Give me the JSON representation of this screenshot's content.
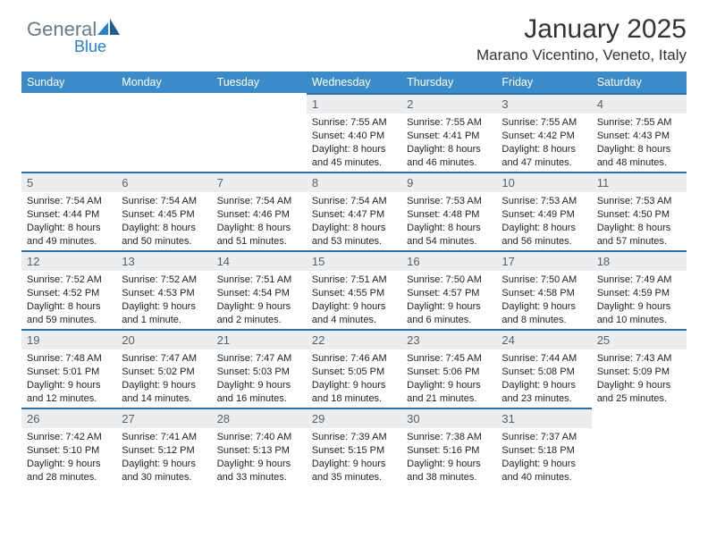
{
  "brand": {
    "part1": "General",
    "part2": "Blue"
  },
  "title": "January 2025",
  "location": "Marano Vicentino, Veneto, Italy",
  "colors": {
    "header_bg": "#3b8bc8",
    "header_text": "#ffffff",
    "daynum_bg": "#ebedee",
    "daynum_text": "#58616a",
    "row_border": "#2b6fa8",
    "body_text": "#222222",
    "brand_gray": "#6b7a85",
    "brand_blue": "#2b7fc4"
  },
  "day_headers": [
    "Sunday",
    "Monday",
    "Tuesday",
    "Wednesday",
    "Thursday",
    "Friday",
    "Saturday"
  ],
  "weeks": [
    [
      {
        "empty": true
      },
      {
        "empty": true
      },
      {
        "empty": true
      },
      {
        "n": "1",
        "sunrise": "7:55 AM",
        "sunset": "4:40 PM",
        "daylight": "8 hours and 45 minutes."
      },
      {
        "n": "2",
        "sunrise": "7:55 AM",
        "sunset": "4:41 PM",
        "daylight": "8 hours and 46 minutes."
      },
      {
        "n": "3",
        "sunrise": "7:55 AM",
        "sunset": "4:42 PM",
        "daylight": "8 hours and 47 minutes."
      },
      {
        "n": "4",
        "sunrise": "7:55 AM",
        "sunset": "4:43 PM",
        "daylight": "8 hours and 48 minutes."
      }
    ],
    [
      {
        "n": "5",
        "sunrise": "7:54 AM",
        "sunset": "4:44 PM",
        "daylight": "8 hours and 49 minutes."
      },
      {
        "n": "6",
        "sunrise": "7:54 AM",
        "sunset": "4:45 PM",
        "daylight": "8 hours and 50 minutes."
      },
      {
        "n": "7",
        "sunrise": "7:54 AM",
        "sunset": "4:46 PM",
        "daylight": "8 hours and 51 minutes."
      },
      {
        "n": "8",
        "sunrise": "7:54 AM",
        "sunset": "4:47 PM",
        "daylight": "8 hours and 53 minutes."
      },
      {
        "n": "9",
        "sunrise": "7:53 AM",
        "sunset": "4:48 PM",
        "daylight": "8 hours and 54 minutes."
      },
      {
        "n": "10",
        "sunrise": "7:53 AM",
        "sunset": "4:49 PM",
        "daylight": "8 hours and 56 minutes."
      },
      {
        "n": "11",
        "sunrise": "7:53 AM",
        "sunset": "4:50 PM",
        "daylight": "8 hours and 57 minutes."
      }
    ],
    [
      {
        "n": "12",
        "sunrise": "7:52 AM",
        "sunset": "4:52 PM",
        "daylight": "8 hours and 59 minutes."
      },
      {
        "n": "13",
        "sunrise": "7:52 AM",
        "sunset": "4:53 PM",
        "daylight": "9 hours and 1 minute."
      },
      {
        "n": "14",
        "sunrise": "7:51 AM",
        "sunset": "4:54 PM",
        "daylight": "9 hours and 2 minutes."
      },
      {
        "n": "15",
        "sunrise": "7:51 AM",
        "sunset": "4:55 PM",
        "daylight": "9 hours and 4 minutes."
      },
      {
        "n": "16",
        "sunrise": "7:50 AM",
        "sunset": "4:57 PM",
        "daylight": "9 hours and 6 minutes."
      },
      {
        "n": "17",
        "sunrise": "7:50 AM",
        "sunset": "4:58 PM",
        "daylight": "9 hours and 8 minutes."
      },
      {
        "n": "18",
        "sunrise": "7:49 AM",
        "sunset": "4:59 PM",
        "daylight": "9 hours and 10 minutes."
      }
    ],
    [
      {
        "n": "19",
        "sunrise": "7:48 AM",
        "sunset": "5:01 PM",
        "daylight": "9 hours and 12 minutes."
      },
      {
        "n": "20",
        "sunrise": "7:47 AM",
        "sunset": "5:02 PM",
        "daylight": "9 hours and 14 minutes."
      },
      {
        "n": "21",
        "sunrise": "7:47 AM",
        "sunset": "5:03 PM",
        "daylight": "9 hours and 16 minutes."
      },
      {
        "n": "22",
        "sunrise": "7:46 AM",
        "sunset": "5:05 PM",
        "daylight": "9 hours and 18 minutes."
      },
      {
        "n": "23",
        "sunrise": "7:45 AM",
        "sunset": "5:06 PM",
        "daylight": "9 hours and 21 minutes."
      },
      {
        "n": "24",
        "sunrise": "7:44 AM",
        "sunset": "5:08 PM",
        "daylight": "9 hours and 23 minutes."
      },
      {
        "n": "25",
        "sunrise": "7:43 AM",
        "sunset": "5:09 PM",
        "daylight": "9 hours and 25 minutes."
      }
    ],
    [
      {
        "n": "26",
        "sunrise": "7:42 AM",
        "sunset": "5:10 PM",
        "daylight": "9 hours and 28 minutes."
      },
      {
        "n": "27",
        "sunrise": "7:41 AM",
        "sunset": "5:12 PM",
        "daylight": "9 hours and 30 minutes."
      },
      {
        "n": "28",
        "sunrise": "7:40 AM",
        "sunset": "5:13 PM",
        "daylight": "9 hours and 33 minutes."
      },
      {
        "n": "29",
        "sunrise": "7:39 AM",
        "sunset": "5:15 PM",
        "daylight": "9 hours and 35 minutes."
      },
      {
        "n": "30",
        "sunrise": "7:38 AM",
        "sunset": "5:16 PM",
        "daylight": "9 hours and 38 minutes."
      },
      {
        "n": "31",
        "sunrise": "7:37 AM",
        "sunset": "5:18 PM",
        "daylight": "9 hours and 40 minutes."
      },
      {
        "empty": true
      }
    ]
  ],
  "labels": {
    "sunrise": "Sunrise: ",
    "sunset": "Sunset: ",
    "daylight": "Daylight: "
  }
}
